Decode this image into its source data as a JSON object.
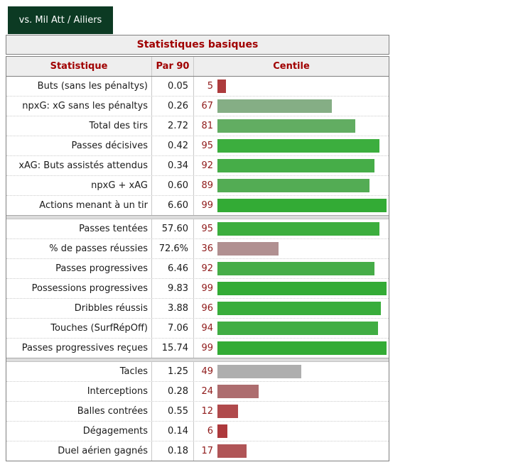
{
  "tab": {
    "label": "vs. Mil Att / Ailiers"
  },
  "table": {
    "caption": "Statistiques basiques",
    "columns": [
      "Statistique",
      "Par 90",
      "Centile"
    ],
    "sections": [
      {
        "rows": [
          {
            "name": "Buts (sans les pénaltys)",
            "per90": "0.05",
            "pct": 5,
            "color": "#ad3b3d"
          },
          {
            "name": "npxG: xG sans les pénaltys",
            "per90": "0.26",
            "pct": 67,
            "color": "#85ae85"
          },
          {
            "name": "Total des tirs",
            "per90": "2.72",
            "pct": 81,
            "color": "#62ad62"
          },
          {
            "name": "Passes décisives",
            "per90": "0.42",
            "pct": 95,
            "color": "#3cae3e"
          },
          {
            "name": "xAG: Buts assistés attendus",
            "per90": "0.34",
            "pct": 92,
            "color": "#46ad48"
          },
          {
            "name": "npxG + xAG",
            "per90": "0.60",
            "pct": 89,
            "color": "#53ac54"
          },
          {
            "name": "Actions menant à un tir",
            "per90": "6.60",
            "pct": 99,
            "color": "#33ab35"
          }
        ]
      },
      {
        "rows": [
          {
            "name": "Passes tentées",
            "per90": "57.60",
            "pct": 95,
            "color": "#3cae3e"
          },
          {
            "name": "% de passes réussies",
            "per90": "72.6%",
            "pct": 36,
            "color": "#b19091"
          },
          {
            "name": "Passes progressives",
            "per90": "6.46",
            "pct": 92,
            "color": "#46ad48"
          },
          {
            "name": "Possessions progressives",
            "per90": "9.83",
            "pct": 99,
            "color": "#33ab35"
          },
          {
            "name": "Dribbles réussis",
            "per90": "3.88",
            "pct": 96,
            "color": "#39ad3b"
          },
          {
            "name": "Touches (SurfRépOff)",
            "per90": "7.06",
            "pct": 94,
            "color": "#41ad43"
          },
          {
            "name": "Passes progressives reçues",
            "per90": "15.74",
            "pct": 99,
            "color": "#33ab35"
          }
        ]
      },
      {
        "rows": [
          {
            "name": "Tacles",
            "per90": "1.25",
            "pct": 49,
            "color": "#aeaeae"
          },
          {
            "name": "Interceptions",
            "per90": "0.28",
            "pct": 24,
            "color": "#ad6d6f"
          },
          {
            "name": "Balles contrées",
            "per90": "0.55",
            "pct": 12,
            "color": "#b04a4c"
          },
          {
            "name": "Dégagements",
            "per90": "0.14",
            "pct": 6,
            "color": "#ad393c"
          },
          {
            "name": "Duel aérien gagnés",
            "per90": "0.18",
            "pct": 17,
            "color": "#b05557"
          }
        ]
      }
    ]
  },
  "colors": {
    "page_bg": "#ffffff",
    "tab_bg": "#0c3a23",
    "tab_text": "#ffffff",
    "header_bg": "#eeeeee",
    "header_text": "#a00000",
    "pct_text": "#8f1a1a",
    "body_text": "#1a1a1a",
    "border_outer": "#808080",
    "border_inner": "#c9c9c9",
    "row_divider": "#cccccc",
    "separator_bg": "#dcdcdc"
  },
  "chart_data": {
    "type": "bar",
    "orientation": "horizontal",
    "title": "Statistiques basiques",
    "categories": [
      "Buts (sans les pénaltys)",
      "npxG: xG sans les pénaltys",
      "Total des tirs",
      "Passes décisives",
      "xAG: Buts assistés attendus",
      "npxG + xAG",
      "Actions menant à un tir",
      "Passes tentées",
      "% de passes réussies",
      "Passes progressives",
      "Possessions progressives",
      "Dribbles réussis",
      "Touches (SurfRépOff)",
      "Passes progressives reçues",
      "Tacles",
      "Interceptions",
      "Balles contrées",
      "Dégagements",
      "Duel aérien gagnés"
    ],
    "series": [
      {
        "name": "Par 90",
        "values": [
          0.05,
          0.26,
          2.72,
          0.42,
          0.34,
          0.6,
          6.6,
          57.6,
          72.6,
          6.46,
          9.83,
          3.88,
          7.06,
          15.74,
          1.25,
          0.28,
          0.55,
          0.14,
          0.18
        ]
      },
      {
        "name": "Centile",
        "values": [
          5,
          67,
          81,
          95,
          92,
          89,
          99,
          95,
          36,
          92,
          99,
          96,
          94,
          99,
          49,
          24,
          12,
          6,
          17
        ]
      }
    ],
    "xlim": [
      0,
      100
    ],
    "grid": false,
    "legend_position": "none"
  }
}
